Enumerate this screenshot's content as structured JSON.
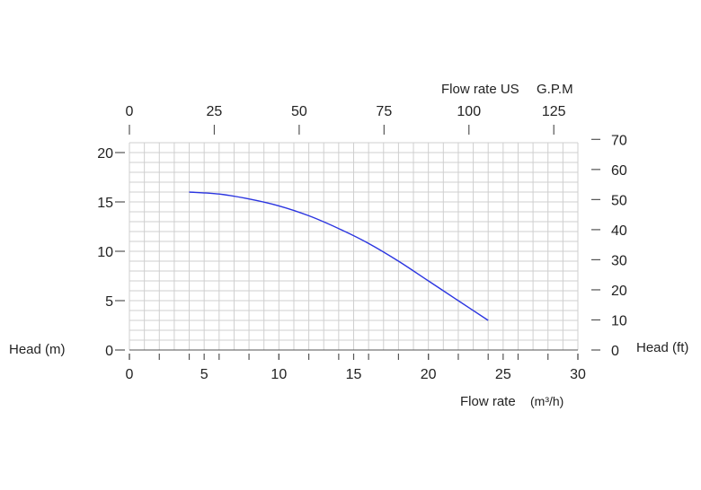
{
  "chart_data": {
    "type": "line",
    "series": [
      {
        "x": [
          4,
          6,
          8,
          10,
          12,
          14,
          16,
          18,
          20,
          22,
          24
        ],
        "y": [
          16.0,
          15.8,
          15.3,
          14.6,
          13.6,
          12.3,
          10.8,
          9.0,
          7.0,
          5.0,
          3.0
        ],
        "color": "#2b35e0"
      }
    ],
    "xlabel": "Flow rate",
    "xlabel_unit": "(m³/h)",
    "ylabel_left": "Head (m)",
    "ylabel_right": "Head (ft)",
    "top_axis_label_1": "Flow rate US",
    "top_axis_label_2": "G.P.M",
    "xlim": [
      0,
      30
    ],
    "ylim": [
      0,
      21
    ],
    "x_ticks": [
      "0",
      "5",
      "10",
      "15",
      "20",
      "25",
      "30"
    ],
    "y_ticks": [
      "0",
      "5",
      "10",
      "15",
      "20"
    ],
    "top_ticks": [
      "0",
      "25",
      "50",
      "75",
      "100",
      "125"
    ],
    "top_tick_values": [
      0,
      25,
      50,
      75,
      100,
      125
    ],
    "usgpm_per_m3h": 4.403,
    "right_ticks": [
      "0",
      "10",
      "20",
      "30",
      "40",
      "50",
      "60",
      "70"
    ],
    "right_tick_values": [
      0,
      10,
      20,
      30,
      40,
      50,
      60,
      70
    ],
    "ft_per_m": 3.281,
    "grid": true
  }
}
